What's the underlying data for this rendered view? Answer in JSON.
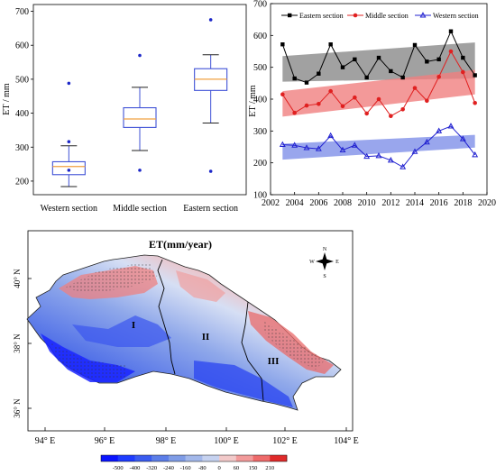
{
  "chart_data": [
    {
      "type": "box",
      "title": "",
      "ylabel": "ET / mm",
      "ylim": [
        160,
        720
      ],
      "yticks": [
        200,
        300,
        400,
        500,
        600,
        700
      ],
      "categories": [
        "Western section",
        "Middle section",
        "Eastern section"
      ],
      "boxes": [
        {
          "category": "Western section",
          "whisker_low": 184,
          "q1": 219,
          "median": 243,
          "q3": 257,
          "whisker_high": 304,
          "outliers": [
            488,
            316,
            232
          ]
        },
        {
          "category": "Middle section",
          "whisker_low": 290,
          "q1": 358,
          "median": 383,
          "q3": 416,
          "whisker_high": 476,
          "outliers": [
            570,
            232
          ]
        },
        {
          "category": "Eastern section",
          "whisker_low": 371,
          "q1": 467,
          "median": 500,
          "q3": 531,
          "whisker_high": 572,
          "outliers": [
            675,
            229
          ]
        }
      ],
      "colors": {
        "box": "#3f51d6",
        "median": "#f0a040",
        "outlier": "#1c27c8"
      }
    },
    {
      "type": "line",
      "title": "",
      "ylabel": "ET / mm",
      "xlabel": "",
      "xlim": [
        2002,
        2020
      ],
      "ylim": [
        100,
        700
      ],
      "xticks": [
        2002,
        2004,
        2006,
        2008,
        2010,
        2012,
        2014,
        2016,
        2018,
        2020
      ],
      "yticks": [
        100,
        200,
        300,
        400,
        500,
        600,
        700
      ],
      "legend_position": "top",
      "x": [
        2003,
        2004,
        2005,
        2006,
        2007,
        2008,
        2009,
        2010,
        2011,
        2012,
        2013,
        2014,
        2015,
        2016,
        2017,
        2018,
        2019
      ],
      "series": [
        {
          "name": "Eastern section",
          "color": "#000000",
          "marker": "square",
          "values": [
            572,
            465,
            452,
            480,
            572,
            500,
            525,
            468,
            530,
            488,
            468,
            570,
            518,
            525,
            613,
            530,
            475
          ],
          "band": {
            "color": "#8a8a8a",
            "lower": [
              455,
              465
            ],
            "upper": [
              535,
              578
            ]
          }
        },
        {
          "name": "Middle section",
          "color": "#e02020",
          "marker": "circle",
          "values": [
            415,
            357,
            380,
            385,
            425,
            378,
            405,
            355,
            400,
            347,
            368,
            435,
            395,
            470,
            550,
            485,
            388
          ],
          "band": {
            "color": "#f08080",
            "lower": [
              345,
              415
            ],
            "upper": [
              425,
              492
            ]
          }
        },
        {
          "name": "Western section",
          "color": "#2020d0",
          "marker": "triangle",
          "values": [
            257,
            255,
            247,
            244,
            285,
            240,
            255,
            220,
            222,
            208,
            187,
            235,
            265,
            300,
            315,
            275,
            225
          ],
          "band": {
            "color": "#8090e8",
            "lower": [
              210,
              248
            ],
            "upper": [
              260,
              288
            ]
          }
        }
      ]
    },
    {
      "type": "heatmap",
      "title": "ET(mm/year)",
      "x_ticks": [
        "94° E",
        "96° E",
        "98° E",
        "100° E",
        "102° E",
        "104° E"
      ],
      "y_ticks": [
        "36° N",
        "38° N",
        "40° N"
      ],
      "region_labels": [
        "I",
        "II",
        "III"
      ],
      "compass": [
        "N",
        "S",
        "W",
        "E"
      ],
      "colorbar": {
        "labels": [
          "-500",
          "-400",
          "-320",
          "-240",
          "-160",
          "-80",
          "0",
          "60",
          "150",
          "210"
        ],
        "colors": [
          "#0a14ff",
          "#1e3cff",
          "#3a5cf0",
          "#5c7ee8",
          "#7f9ce6",
          "#a3b8ea",
          "#c6d2f0",
          "#f2c9c9",
          "#f29a9a",
          "#ee6a6a",
          "#e02a2a"
        ]
      }
    }
  ]
}
